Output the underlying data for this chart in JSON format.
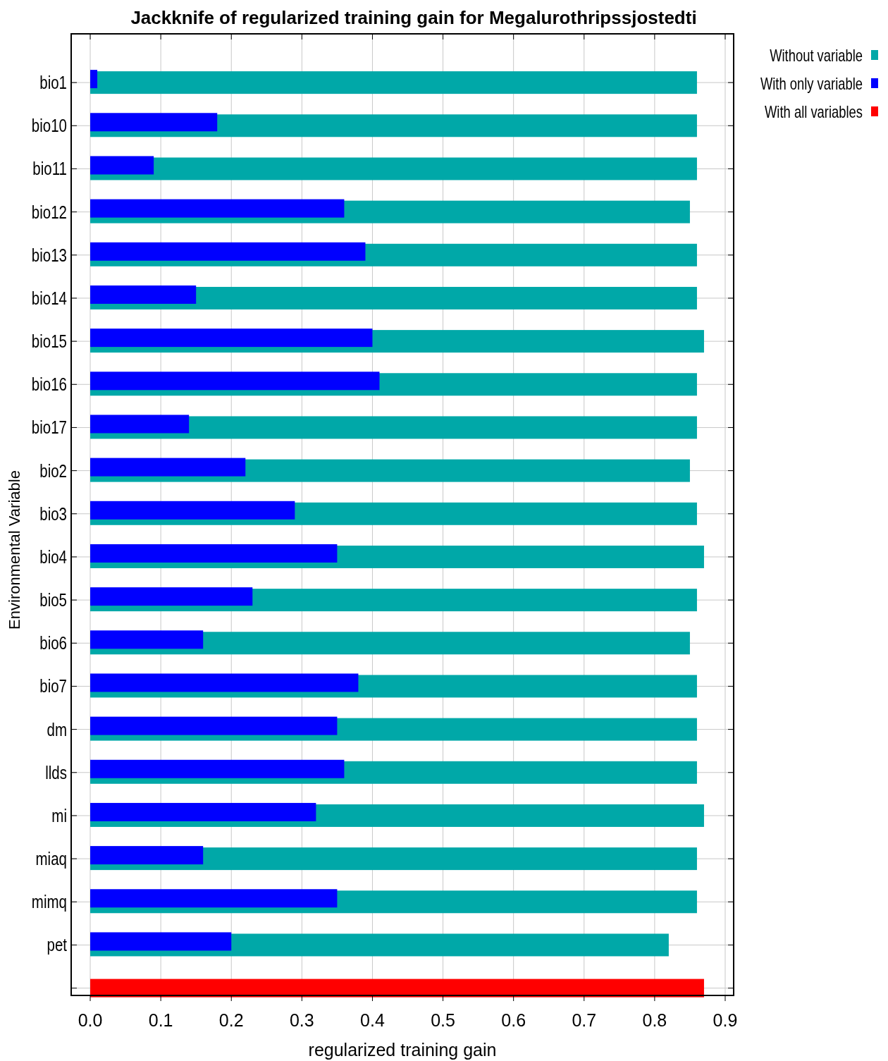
{
  "chart_data": {
    "type": "bar",
    "orientation": "horizontal",
    "title": "Jackknife of regularized training gain for Megalurothripssjostedti",
    "xlabel": "regularized training gain",
    "ylabel": "Environmental Variable",
    "categories": [
      "bio1",
      "bio10",
      "bio11",
      "bio12",
      "bio13",
      "bio14",
      "bio15",
      "bio16",
      "bio17",
      "bio2",
      "bio3",
      "bio4",
      "bio5",
      "bio6",
      "bio7",
      "dm",
      "llds",
      "mi",
      "miaq",
      "mimq",
      "pet",
      null
    ],
    "series": [
      {
        "name": "Without variable",
        "color": "#00a8a8",
        "values": [
          0.86,
          0.86,
          0.86,
          0.85,
          0.86,
          0.86,
          0.87,
          0.86,
          0.86,
          0.85,
          0.86,
          0.87,
          0.86,
          0.85,
          0.86,
          0.86,
          0.86,
          0.87,
          0.86,
          0.86,
          0.82,
          null
        ]
      },
      {
        "name": "With only variable",
        "color": "#0000ff",
        "values": [
          0.01,
          0.18,
          0.09,
          0.36,
          0.39,
          0.15,
          0.4,
          0.41,
          0.14,
          0.22,
          0.29,
          0.35,
          0.23,
          0.16,
          0.38,
          0.35,
          0.36,
          0.32,
          0.16,
          0.35,
          0.2,
          null
        ]
      },
      {
        "name": "With all variables",
        "color": "#ff0000",
        "values": [
          null,
          null,
          null,
          null,
          null,
          null,
          null,
          null,
          null,
          null,
          null,
          null,
          null,
          null,
          null,
          null,
          null,
          null,
          null,
          null,
          null,
          0.87
        ]
      }
    ],
    "xlim": [
      -0.027,
      0.912
    ],
    "xticks": [
      {
        "value": 0,
        "label": "0.0"
      },
      0.1,
      0.2,
      0.3,
      0.4,
      0.5,
      0.6,
      0.7,
      0.8,
      0.9
    ],
    "grid": true,
    "legend": "top right"
  }
}
